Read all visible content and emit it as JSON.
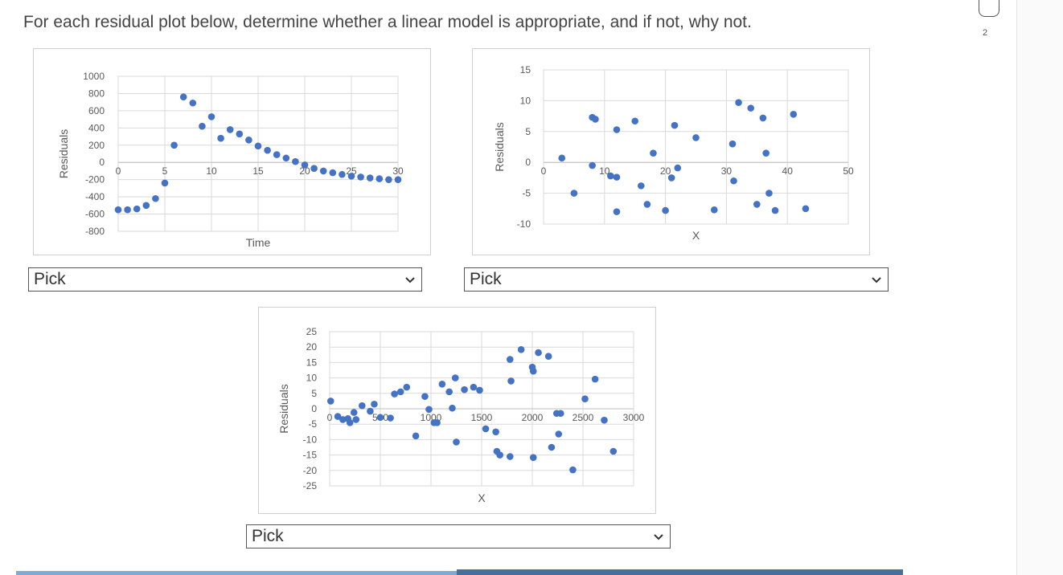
{
  "question": "For each residual plot below, determine whether a linear model is appropriate, and if not, why not.",
  "page_number": "2",
  "colors": {
    "marker": "#4472c4",
    "grid": "#d9d9d9",
    "axis_text": "#595959"
  },
  "dropdowns": [
    {
      "selected": "Pick"
    },
    {
      "selected": "Pick"
    },
    {
      "selected": "Pick"
    }
  ],
  "chart_data": [
    {
      "type": "scatter",
      "title": "",
      "xlabel": "Time",
      "ylabel": "Residuals",
      "xlim": [
        0,
        30
      ],
      "ylim": [
        -800,
        1000
      ],
      "xticks": [
        0,
        5,
        10,
        15,
        20,
        25,
        30
      ],
      "yticks": [
        -800,
        -600,
        -400,
        -200,
        0,
        200,
        400,
        600,
        800,
        1000
      ],
      "grid": true,
      "points": [
        [
          0,
          -550
        ],
        [
          1,
          -550
        ],
        [
          2,
          -540
        ],
        [
          3,
          -500
        ],
        [
          4,
          -420
        ],
        [
          5,
          -240
        ],
        [
          6,
          200
        ],
        [
          7,
          760
        ],
        [
          8,
          690
        ],
        [
          9,
          420
        ],
        [
          10,
          530
        ],
        [
          11,
          280
        ],
        [
          12,
          380
        ],
        [
          13,
          330
        ],
        [
          14,
          260
        ],
        [
          15,
          190
        ],
        [
          16,
          140
        ],
        [
          17,
          90
        ],
        [
          18,
          50
        ],
        [
          19,
          10
        ],
        [
          20,
          -30
        ],
        [
          21,
          -70
        ],
        [
          22,
          -100
        ],
        [
          23,
          -120
        ],
        [
          24,
          -140
        ],
        [
          25,
          -160
        ],
        [
          26,
          -170
        ],
        [
          27,
          -180
        ],
        [
          28,
          -190
        ],
        [
          29,
          -200
        ],
        [
          30,
          -200
        ]
      ]
    },
    {
      "type": "scatter",
      "title": "",
      "xlabel": "X",
      "ylabel": "Residuals",
      "xlim": [
        0,
        50
      ],
      "ylim": [
        -10,
        15
      ],
      "xticks": [
        0,
        10,
        20,
        30,
        40,
        50
      ],
      "yticks": [
        -10,
        -5,
        0,
        5,
        10,
        15
      ],
      "grid": true,
      "points": [
        [
          3,
          0.7
        ],
        [
          5,
          -5
        ],
        [
          8,
          7.3
        ],
        [
          8.5,
          7
        ],
        [
          8,
          -0.5
        ],
        [
          11,
          -2.2
        ],
        [
          12,
          -2.4
        ],
        [
          12,
          5.3
        ],
        [
          12,
          -8
        ],
        [
          15,
          6.7
        ],
        [
          16,
          -3.8
        ],
        [
          17,
          -6.8
        ],
        [
          18,
          1.5
        ],
        [
          20,
          -7.8
        ],
        [
          21,
          -2.5
        ],
        [
          21.5,
          6
        ],
        [
          22,
          -0.9
        ],
        [
          25,
          4
        ],
        [
          28,
          -7.7
        ],
        [
          31,
          3
        ],
        [
          31.2,
          -3
        ],
        [
          32,
          9.7
        ],
        [
          34,
          8.8
        ],
        [
          36,
          7.2
        ],
        [
          36.5,
          1.5
        ],
        [
          37,
          -5
        ],
        [
          35,
          -6.8
        ],
        [
          38,
          -7.8
        ],
        [
          41,
          7.8
        ],
        [
          43,
          -7.5
        ]
      ]
    },
    {
      "type": "scatter",
      "title": "",
      "xlabel": "X",
      "ylabel": "Residuals",
      "xlim": [
        0,
        3000
      ],
      "ylim": [
        -25,
        25
      ],
      "xticks": [
        0,
        500,
        1000,
        1500,
        2000,
        2500,
        3000
      ],
      "yticks": [
        -25,
        -20,
        -15,
        -10,
        -5,
        0,
        5,
        10,
        15,
        20,
        25
      ],
      "grid": true,
      "points": [
        [
          10,
          2.5
        ],
        [
          80,
          -2.5
        ],
        [
          130,
          -3.5
        ],
        [
          180,
          -3.2
        ],
        [
          200,
          -4.5
        ],
        [
          240,
          -1.2
        ],
        [
          260,
          -3.5
        ],
        [
          320,
          1
        ],
        [
          400,
          -0.8
        ],
        [
          440,
          1.5
        ],
        [
          500,
          -2.8
        ],
        [
          600,
          -3
        ],
        [
          640,
          4.8
        ],
        [
          700,
          5.5
        ],
        [
          760,
          7
        ],
        [
          850,
          -8.8
        ],
        [
          940,
          4
        ],
        [
          980,
          -0.2
        ],
        [
          1030,
          -4.5
        ],
        [
          1060,
          -4.5
        ],
        [
          1110,
          8
        ],
        [
          1180,
          5.5
        ],
        [
          1210,
          0.2
        ],
        [
          1240,
          10
        ],
        [
          1250,
          -10.8
        ],
        [
          1330,
          6.2
        ],
        [
          1420,
          7
        ],
        [
          1480,
          6
        ],
        [
          1540,
          -6.5
        ],
        [
          1640,
          -7.5
        ],
        [
          1650,
          -13.8
        ],
        [
          1680,
          -15
        ],
        [
          1780,
          -15.5
        ],
        [
          1780,
          16
        ],
        [
          1790,
          9
        ],
        [
          1890,
          19.2
        ],
        [
          2000,
          13.5
        ],
        [
          2010,
          12.2
        ],
        [
          2060,
          18.2
        ],
        [
          2160,
          17
        ],
        [
          2190,
          -12.5
        ],
        [
          2240,
          -1.5
        ],
        [
          2260,
          -8.2
        ],
        [
          2280,
          -1.5
        ],
        [
          2010,
          -15.8
        ],
        [
          2400,
          -19.8
        ],
        [
          2520,
          3.2
        ],
        [
          2620,
          9.6
        ],
        [
          2710,
          -3.7
        ],
        [
          2800,
          -13.8
        ]
      ]
    }
  ]
}
